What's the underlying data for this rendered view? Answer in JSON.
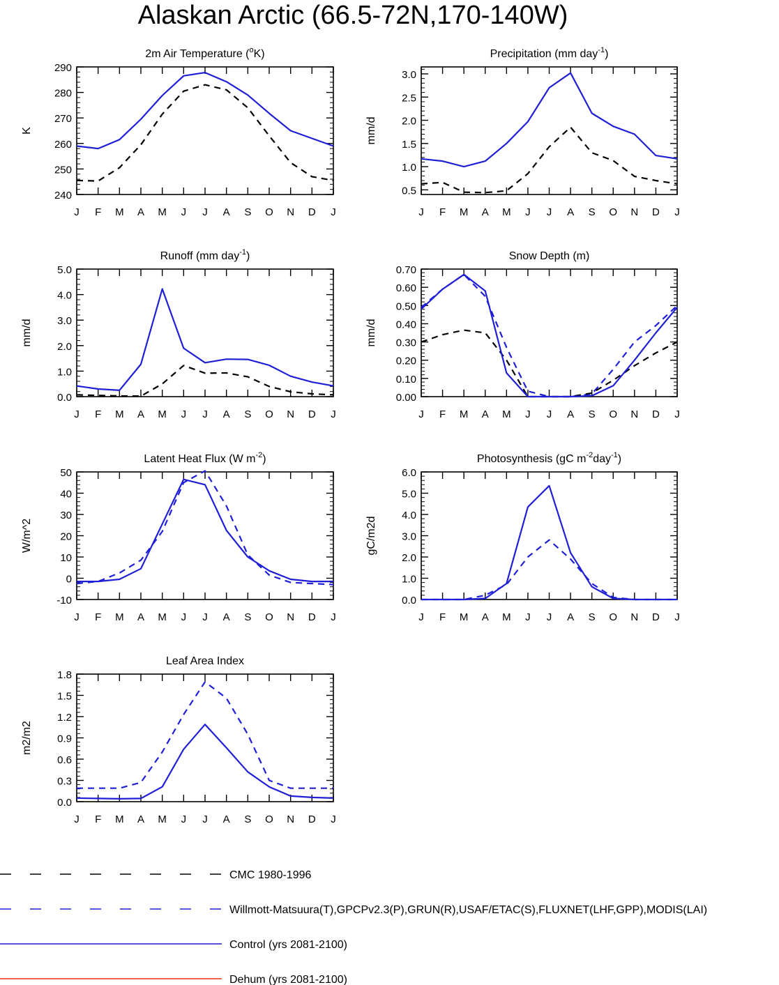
{
  "title": "Alaskan Arctic (66.5-72N,170-140W)",
  "months": [
    "J",
    "F",
    "M",
    "A",
    "M",
    "J",
    "J",
    "A",
    "S",
    "O",
    "N",
    "D",
    "J"
  ],
  "colors": {
    "cmc": "#000000",
    "obs": "#1f1fd6",
    "control": "#1f1fd6",
    "dehum": "#e8321e"
  },
  "chart_data": [
    {
      "type": "line",
      "title": "2m Air Temperature (",
      "title_sup": "o",
      "title_end": "K)",
      "ylabel": "K",
      "ylim": [
        240,
        290
      ],
      "yticks": [
        "240",
        "250",
        "260",
        "270",
        "280",
        "290"
      ],
      "categories": [
        "J",
        "F",
        "M",
        "A",
        "M",
        "J",
        "J",
        "A",
        "S",
        "O",
        "N",
        "D",
        "J"
      ],
      "series": [
        {
          "key": "control",
          "values": [
            259.0,
            258.0,
            261.5,
            269.5,
            278.8,
            286.5,
            287.8,
            284.2,
            279.0,
            271.8,
            265.0,
            262.0,
            259.0
          ]
        },
        {
          "key": "cmc",
          "values": [
            245.5,
            245.3,
            250.5,
            259.5,
            271.5,
            280.5,
            283.0,
            281.0,
            274.0,
            263.0,
            252.5,
            247.0,
            245.5
          ]
        }
      ]
    },
    {
      "type": "line",
      "title": "Precipitation (mm day",
      "title_sup": "-1",
      "title_end": ")",
      "ylabel": "mm/d",
      "ylim": [
        0.4,
        3.15
      ],
      "yticks": [
        "0.5",
        "1.0",
        "1.5",
        "2.0",
        "2.5",
        "3.0"
      ],
      "categories": [
        "J",
        "F",
        "M",
        "A",
        "M",
        "J",
        "J",
        "A",
        "S",
        "O",
        "N",
        "D",
        "J"
      ],
      "series": [
        {
          "key": "control",
          "values": [
            1.17,
            1.12,
            1.0,
            1.12,
            1.5,
            1.97,
            2.7,
            3.02,
            2.15,
            1.87,
            1.7,
            1.24,
            1.17
          ]
        },
        {
          "key": "cmc",
          "values": [
            0.63,
            0.66,
            0.45,
            0.44,
            0.48,
            0.85,
            1.43,
            1.85,
            1.3,
            1.13,
            0.79,
            0.7,
            0.63
          ]
        }
      ]
    },
    {
      "type": "line",
      "title": "Runoff (mm day",
      "title_sup": "-1",
      "title_end": ")",
      "ylabel": "mm/d",
      "ylim": [
        0,
        5
      ],
      "yticks": [
        "0.0",
        "1.0",
        "2.0",
        "3.0",
        "4.0",
        "5.0"
      ],
      "categories": [
        "J",
        "F",
        "M",
        "A",
        "M",
        "J",
        "J",
        "A",
        "S",
        "O",
        "N",
        "D",
        "J"
      ],
      "series": [
        {
          "key": "control",
          "values": [
            0.42,
            0.3,
            0.25,
            1.27,
            4.22,
            1.9,
            1.33,
            1.47,
            1.46,
            1.23,
            0.8,
            0.57,
            0.42
          ]
        },
        {
          "key": "cmc",
          "values": [
            0.07,
            0.05,
            0.03,
            0.02,
            0.5,
            1.22,
            0.92,
            0.93,
            0.78,
            0.4,
            0.19,
            0.11,
            0.07
          ]
        }
      ]
    },
    {
      "type": "line",
      "title": "Snow Depth (m)",
      "title_sup": "",
      "title_end": "",
      "ylabel": "mm/d",
      "ylim": [
        0,
        0.7
      ],
      "yticks": [
        "0.00",
        "0.10",
        "0.20",
        "0.30",
        "0.40",
        "0.50",
        "0.60",
        "0.70"
      ],
      "categories": [
        "J",
        "F",
        "M",
        "A",
        "M",
        "J",
        "J",
        "A",
        "S",
        "O",
        "N",
        "D",
        "J"
      ],
      "series": [
        {
          "key": "control",
          "values": [
            0.48,
            0.59,
            0.67,
            0.58,
            0.13,
            0.0,
            0.0,
            0.0,
            0.005,
            0.06,
            0.2,
            0.35,
            0.49
          ]
        },
        {
          "key": "obs",
          "values": [
            0.49,
            0.59,
            0.67,
            0.55,
            0.27,
            0.03,
            0.0,
            0.0,
            0.015,
            0.15,
            0.3,
            0.39,
            0.5
          ]
        },
        {
          "key": "cmc",
          "values": [
            0.3,
            0.34,
            0.365,
            0.35,
            0.2,
            0.0,
            0.0,
            0.0,
            0.02,
            0.09,
            0.17,
            0.24,
            0.3
          ]
        }
      ]
    },
    {
      "type": "line",
      "title": "Latent Heat Flux (W m",
      "title_sup": "-2",
      "title_end": ")",
      "ylabel": "W/m^2",
      "ylim": [
        -10,
        50
      ],
      "yticks": [
        "-10",
        "0",
        "10",
        "20",
        "30",
        "40",
        "50"
      ],
      "categories": [
        "J",
        "F",
        "M",
        "A",
        "M",
        "J",
        "J",
        "A",
        "S",
        "O",
        "N",
        "D",
        "J"
      ],
      "series": [
        {
          "key": "control",
          "values": [
            -1.5,
            -1.5,
            -0.5,
            4.5,
            25.5,
            46.5,
            44.0,
            22.5,
            10.0,
            3.5,
            -0.5,
            -1.5,
            -1.5
          ]
        },
        {
          "key": "obs",
          "values": [
            -2.5,
            -1.5,
            2.5,
            8.5,
            22.0,
            45.0,
            50.5,
            34.0,
            11.0,
            1.5,
            -2.0,
            -2.5,
            -3.0
          ]
        }
      ]
    },
    {
      "type": "line",
      "title": "Photosynthesis (gC m",
      "title_sup": "-2",
      "title_end": "day",
      "title_sup2": "-1",
      "title_end2": ")",
      "ylabel": "gC/m2d",
      "ylim": [
        0,
        6
      ],
      "yticks": [
        "0.0",
        "1.0",
        "2.0",
        "3.0",
        "4.0",
        "5.0",
        "6.0"
      ],
      "categories": [
        "J",
        "F",
        "M",
        "A",
        "M",
        "J",
        "J",
        "A",
        "S",
        "O",
        "N",
        "D",
        "J"
      ],
      "series": [
        {
          "key": "control",
          "values": [
            0.0,
            0.0,
            0.0,
            0.05,
            0.75,
            4.35,
            5.35,
            2.2,
            0.6,
            0.05,
            0.0,
            0.0,
            0.0
          ]
        },
        {
          "key": "obs",
          "values": [
            0.0,
            0.0,
            0.0,
            0.2,
            0.7,
            2.0,
            2.8,
            1.9,
            0.75,
            0.1,
            0.0,
            0.0,
            0.0
          ]
        }
      ]
    },
    {
      "type": "line",
      "title": "Leaf Area Index",
      "title_sup": "",
      "title_end": "",
      "ylabel": "m2/m2",
      "ylim": [
        0,
        1.8
      ],
      "yticks": [
        "0.0",
        "0.3",
        "0.6",
        "0.9",
        "1.2",
        "1.5",
        "1.8"
      ],
      "categories": [
        "J",
        "F",
        "M",
        "A",
        "M",
        "J",
        "J",
        "A",
        "S",
        "O",
        "N",
        "D",
        "J"
      ],
      "series": [
        {
          "key": "control",
          "values": [
            0.05,
            0.045,
            0.04,
            0.045,
            0.21,
            0.74,
            1.09,
            0.76,
            0.42,
            0.21,
            0.08,
            0.06,
            0.05
          ]
        },
        {
          "key": "obs",
          "values": [
            0.19,
            0.19,
            0.19,
            0.27,
            0.7,
            1.23,
            1.69,
            1.46,
            0.95,
            0.3,
            0.19,
            0.19,
            0.19
          ]
        }
      ]
    }
  ],
  "legend": [
    {
      "key": "cmc",
      "style": "dashed",
      "label": "CMC 1980-1996"
    },
    {
      "key": "obs",
      "style": "dashed",
      "label": "Willmott-Matsuura(T),GPCPv2.3(P),GRUN(R),USAF/ETAC(S),FLUXNET(LHF,GPP),MODIS(LAI)"
    },
    {
      "key": "control",
      "style": "solid",
      "label": "Control (yrs 2081-2100)"
    },
    {
      "key": "dehum",
      "style": "solid",
      "label": "Dehum (yrs 2081-2100)"
    }
  ]
}
